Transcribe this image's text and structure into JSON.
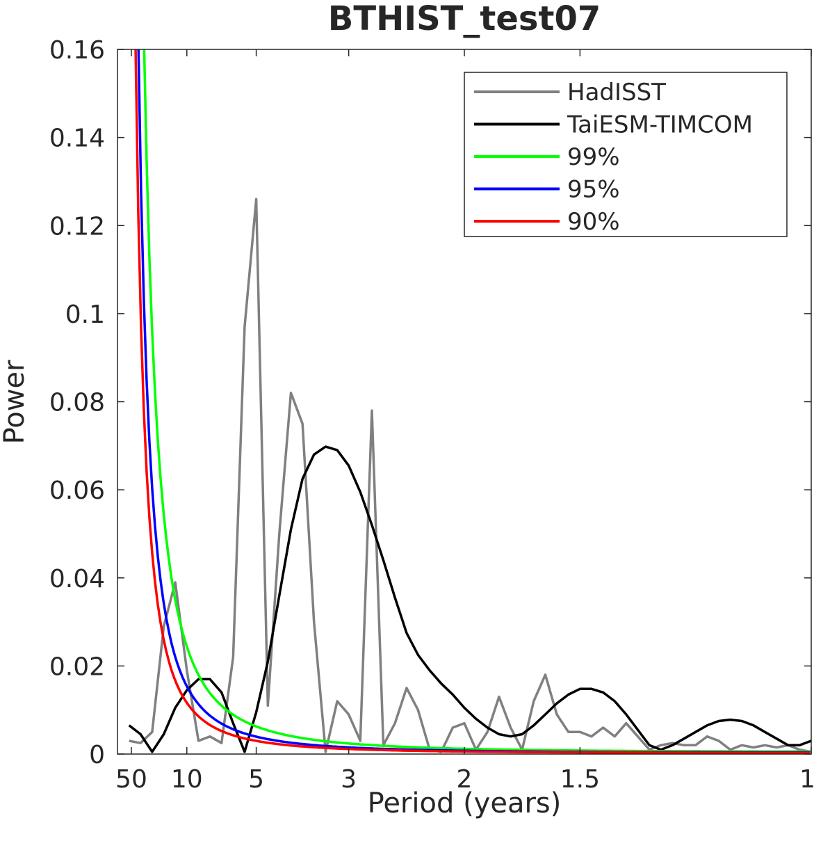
{
  "chart_data": {
    "type": "line",
    "title": "BTHIST_test07",
    "xlabel": "Period (years)",
    "ylabel": "Power",
    "x_axis": {
      "quantity": "frequency (cycles/year)",
      "range": [
        0,
        1
      ],
      "ticks": [
        {
          "freq": 0.02,
          "label": "50"
        },
        {
          "freq": 0.1,
          "label": "10"
        },
        {
          "freq": 0.2,
          "label": "5"
        },
        {
          "freq": 0.3333,
          "label": "3"
        },
        {
          "freq": 0.5,
          "label": "2"
        },
        {
          "freq": 0.6667,
          "label": "1.5"
        },
        {
          "freq": 1.0,
          "label": "1"
        }
      ]
    },
    "y_axis": {
      "range": [
        0,
        0.16
      ],
      "ticks": [
        {
          "value": 0,
          "label": "0"
        },
        {
          "value": 0.02,
          "label": "0.02"
        },
        {
          "value": 0.04,
          "label": "0.04"
        },
        {
          "value": 0.06,
          "label": "0.06"
        },
        {
          "value": 0.08,
          "label": "0.08"
        },
        {
          "value": 0.1,
          "label": "0.1"
        },
        {
          "value": 0.12,
          "label": "0.12"
        },
        {
          "value": 0.14,
          "label": "0.14"
        },
        {
          "value": 0.16,
          "label": "0.16"
        }
      ]
    },
    "grid": false,
    "legend_position": "top-right",
    "series": [
      {
        "name": "HadISST",
        "color": "#808080",
        "freq": [
          0.0167,
          0.0333,
          0.05,
          0.0667,
          0.0833,
          0.1,
          0.1167,
          0.1333,
          0.15,
          0.1667,
          0.1833,
          0.2,
          0.2167,
          0.2333,
          0.25,
          0.2667,
          0.2833,
          0.3,
          0.3167,
          0.3333,
          0.35,
          0.3667,
          0.3833,
          0.4,
          0.4167,
          0.4333,
          0.45,
          0.4667,
          0.4833,
          0.5,
          0.5167,
          0.5333,
          0.55,
          0.5667,
          0.5833,
          0.6,
          0.6167,
          0.6333,
          0.65,
          0.6667,
          0.6833,
          0.7,
          0.7167,
          0.7333,
          0.75,
          0.7667,
          0.7833,
          0.8,
          0.8167,
          0.8333,
          0.85,
          0.8667,
          0.8833,
          0.9,
          0.9167,
          0.9333,
          0.95,
          0.9667,
          0.9833,
          1.0
        ],
        "power": [
          0.003,
          0.0025,
          0.005,
          0.029,
          0.039,
          0.019,
          0.003,
          0.004,
          0.0025,
          0.022,
          0.097,
          0.126,
          0.011,
          0.05,
          0.082,
          0.075,
          0.03,
          0.0005,
          0.012,
          0.009,
          0.003,
          0.078,
          0.002,
          0.007,
          0.015,
          0.01,
          0.001,
          0.0005,
          0.006,
          0.007,
          0.001,
          0.005,
          0.013,
          0.006,
          0.001,
          0.012,
          0.018,
          0.009,
          0.005,
          0.005,
          0.004,
          0.006,
          0.004,
          0.007,
          0.004,
          0.001,
          0.002,
          0.0025,
          0.002,
          0.002,
          0.004,
          0.003,
          0.001,
          0.002,
          0.0015,
          0.002,
          0.0015,
          0.002,
          0.001,
          0.0005
        ]
      },
      {
        "name": "TaiESM-TIMCOM",
        "color": "#000000",
        "freq": [
          0.0167,
          0.0333,
          0.05,
          0.0667,
          0.0833,
          0.1,
          0.1167,
          0.1333,
          0.15,
          0.1667,
          0.1833,
          0.2,
          0.2167,
          0.2333,
          0.25,
          0.2667,
          0.2833,
          0.3,
          0.3167,
          0.3333,
          0.35,
          0.3667,
          0.3833,
          0.4,
          0.4167,
          0.4333,
          0.45,
          0.4667,
          0.4833,
          0.5,
          0.5167,
          0.5333,
          0.55,
          0.5667,
          0.5833,
          0.6,
          0.6167,
          0.6333,
          0.65,
          0.6667,
          0.6833,
          0.7,
          0.7167,
          0.7333,
          0.75,
          0.7667,
          0.7833,
          0.8,
          0.8167,
          0.8333,
          0.85,
          0.8667,
          0.8833,
          0.9,
          0.9167,
          0.9333,
          0.95,
          0.9667,
          0.9833,
          1.0
        ],
        "power": [
          0.0065,
          0.0045,
          0.0005,
          0.0045,
          0.0105,
          0.0145,
          0.017,
          0.017,
          0.014,
          0.007,
          0.0005,
          0.0095,
          0.021,
          0.036,
          0.051,
          0.0625,
          0.068,
          0.0698,
          0.069,
          0.0655,
          0.0595,
          0.052,
          0.044,
          0.0355,
          0.0275,
          0.0225,
          0.019,
          0.016,
          0.0135,
          0.0105,
          0.008,
          0.006,
          0.0045,
          0.004,
          0.0045,
          0.0065,
          0.009,
          0.0115,
          0.0135,
          0.0148,
          0.0148,
          0.014,
          0.012,
          0.009,
          0.0055,
          0.002,
          0.001,
          0.002,
          0.0035,
          0.005,
          0.0065,
          0.0075,
          0.0078,
          0.0075,
          0.0065,
          0.005,
          0.0035,
          0.002,
          0.002,
          0.003
        ]
      },
      {
        "name": "99%",
        "color": "#00ff00",
        "model": {
          "c": 0.00235,
          "a": 0.98
        }
      },
      {
        "name": "95%",
        "color": "#0000ff",
        "model": {
          "c": 0.00148,
          "a": 0.98
        }
      },
      {
        "name": "90%",
        "color": "#ff0000",
        "model": {
          "c": 0.00112,
          "a": 0.98
        }
      }
    ]
  }
}
